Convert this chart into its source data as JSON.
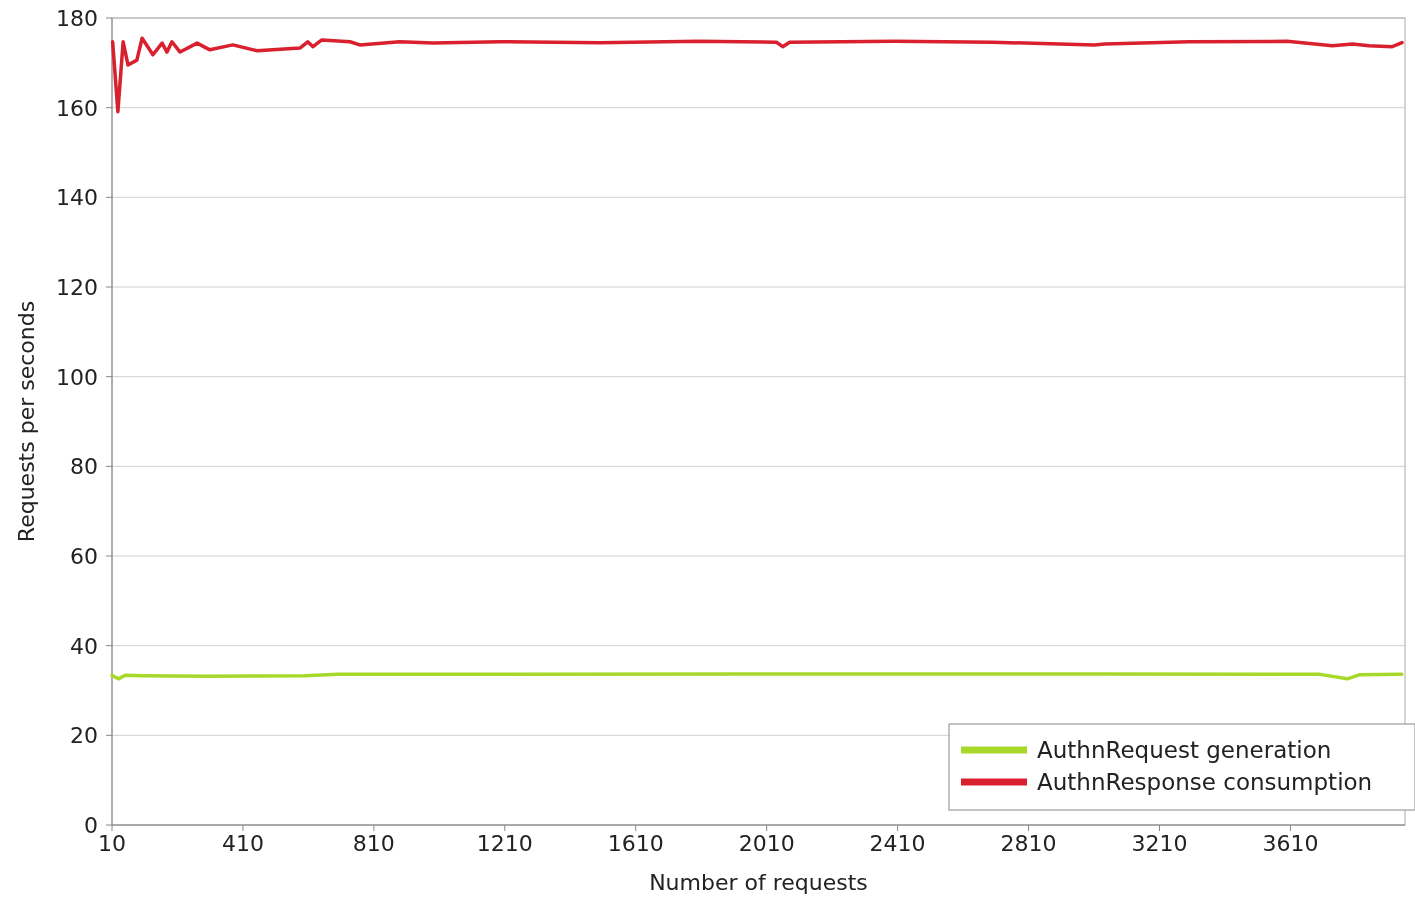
{
  "chart_data": {
    "type": "line",
    "xlabel": "Number of requests",
    "ylabel": "Requests per seconds",
    "xlim": [
      10,
      3960
    ],
    "xticks": [
      10,
      410,
      810,
      1210,
      1610,
      2010,
      2410,
      2810,
      3210,
      3610
    ],
    "ylim": [
      0,
      180
    ],
    "yticks": [
      0,
      20,
      40,
      60,
      80,
      100,
      120,
      140,
      160,
      180
    ],
    "grid": "y",
    "legend": "bottom right",
    "marker": "none",
    "line_style": "solid",
    "series": [
      {
        "name": "AuthnRequest generation",
        "color": "#a8d92a",
        "x": [
          10,
          30,
          50,
          100,
          300,
          600,
          700,
          1200,
          2000,
          3000,
          3700,
          3784,
          3820,
          3950
        ],
        "values": [
          33.4,
          32.6,
          33.4,
          33.3,
          33.2,
          33.3,
          33.6,
          33.6,
          33.7,
          33.7,
          33.6,
          32.6,
          33.5,
          33.6
        ]
      },
      {
        "name": "AuthnResponse consumption",
        "color": "#d9202e",
        "x": [
          12,
          28,
          44,
          59,
          86,
          102,
          135,
          163,
          178,
          193,
          218,
          270,
          309,
          379,
          453,
          584,
          608,
          624,
          651,
          737,
          767,
          889,
          990,
          1195,
          1500,
          1800,
          2040,
          2059,
          2080,
          2400,
          2700,
          3011,
          3042,
          3300,
          3600,
          3738,
          3800,
          3850,
          3921,
          3951
        ],
        "values": [
          174.7,
          159.1,
          174.7,
          169.5,
          170.6,
          175.5,
          171.8,
          174.4,
          172.4,
          174.7,
          172.4,
          174.4,
          172.9,
          174.0,
          172.7,
          173.3,
          174.7,
          173.6,
          175.1,
          174.7,
          174.0,
          174.7,
          174.4,
          174.7,
          174.5,
          174.8,
          174.6,
          173.6,
          174.6,
          174.8,
          174.6,
          174.0,
          174.2,
          174.7,
          174.8,
          173.8,
          174.2,
          173.8,
          173.6,
          174.5
        ]
      }
    ]
  }
}
